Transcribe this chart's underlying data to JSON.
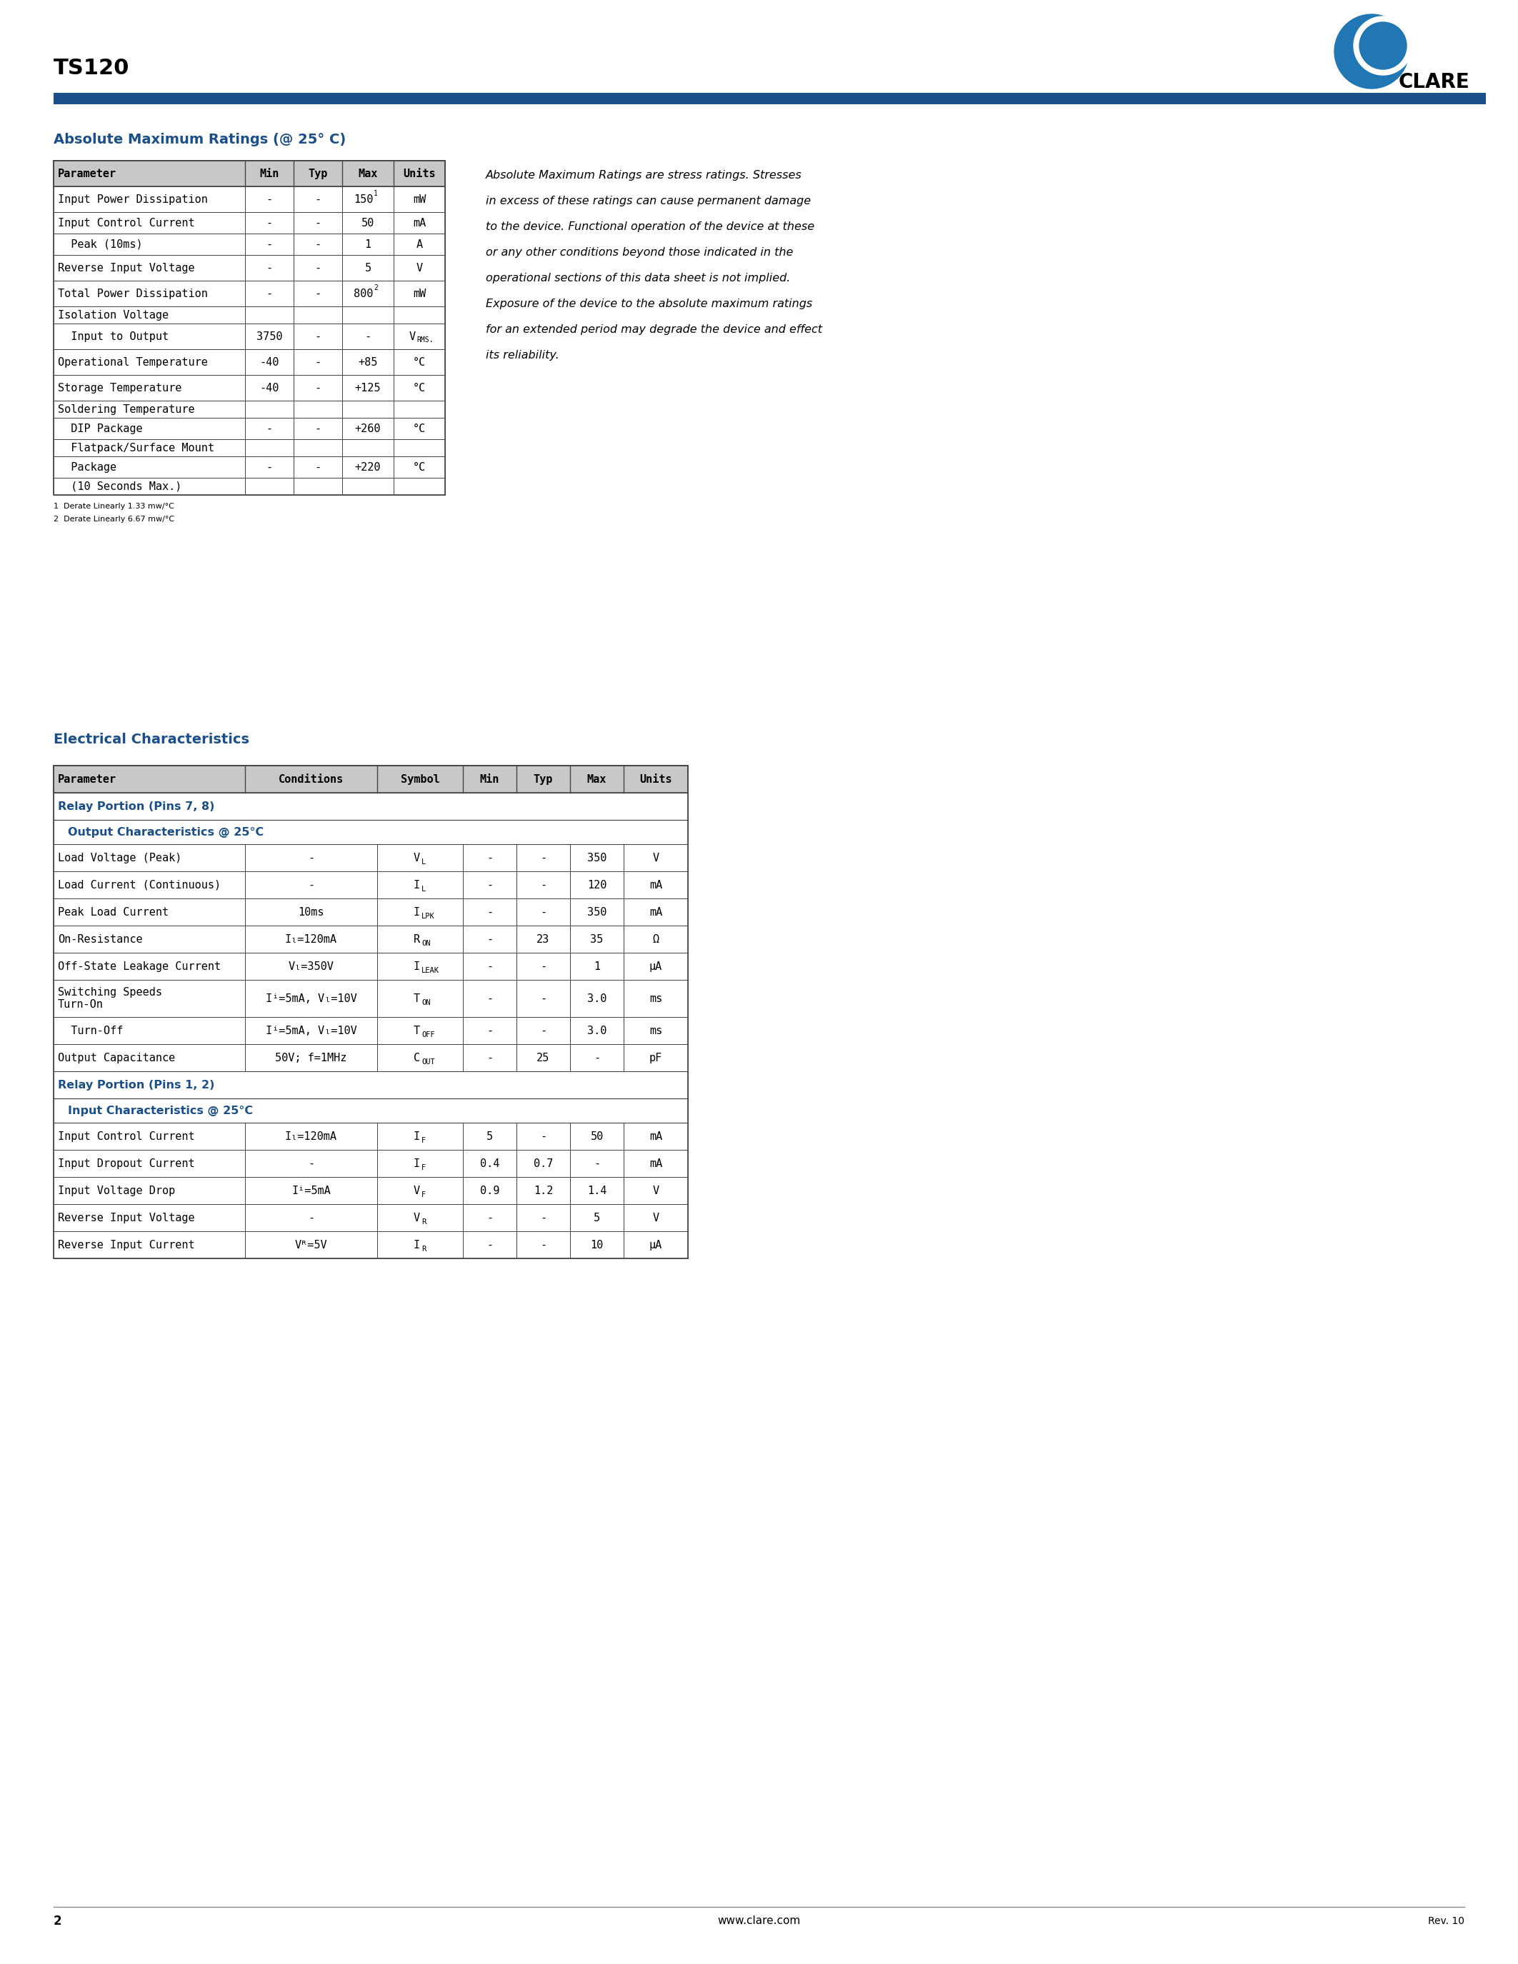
{
  "title": "TS120",
  "company": "CLARE",
  "blue_dark": "#1a4f8a",
  "blue_logo": "#2077b4",
  "page_num": "2",
  "website": "www.clare.com",
  "rev": "Rev. 10",
  "section1_title": "Absolute Maximum Ratings (@ 25° C)",
  "section1_headers": [
    "Parameter",
    "Min",
    "Typ",
    "Max",
    "Units"
  ],
  "footnote1": "1  Derate Linearly 1.33 mw/°C",
  "footnote2": "2  Derate Linearly 6.67 mw/°C",
  "side_text_lines": [
    "Absolute Maximum Ratings are stress ratings. Stresses",
    "in excess of these ratings can cause permanent damage",
    "to the device. Functional operation of the device at these",
    "or any other conditions beyond those indicated in the",
    "operational sections of this data sheet is not implied.",
    "Exposure of the device to the absolute maximum ratings",
    "for an extended period may degrade the device and effect",
    "its reliability."
  ],
  "section2_title": "Electrical Characteristics",
  "section2_headers": [
    "Parameter",
    "Conditions",
    "Symbol",
    "Min",
    "Typ",
    "Max",
    "Units"
  ],
  "bg_color": "#ffffff",
  "table_header_bg": "#c8c8c8",
  "table_border": "#444444",
  "row_alt": "#ffffff"
}
